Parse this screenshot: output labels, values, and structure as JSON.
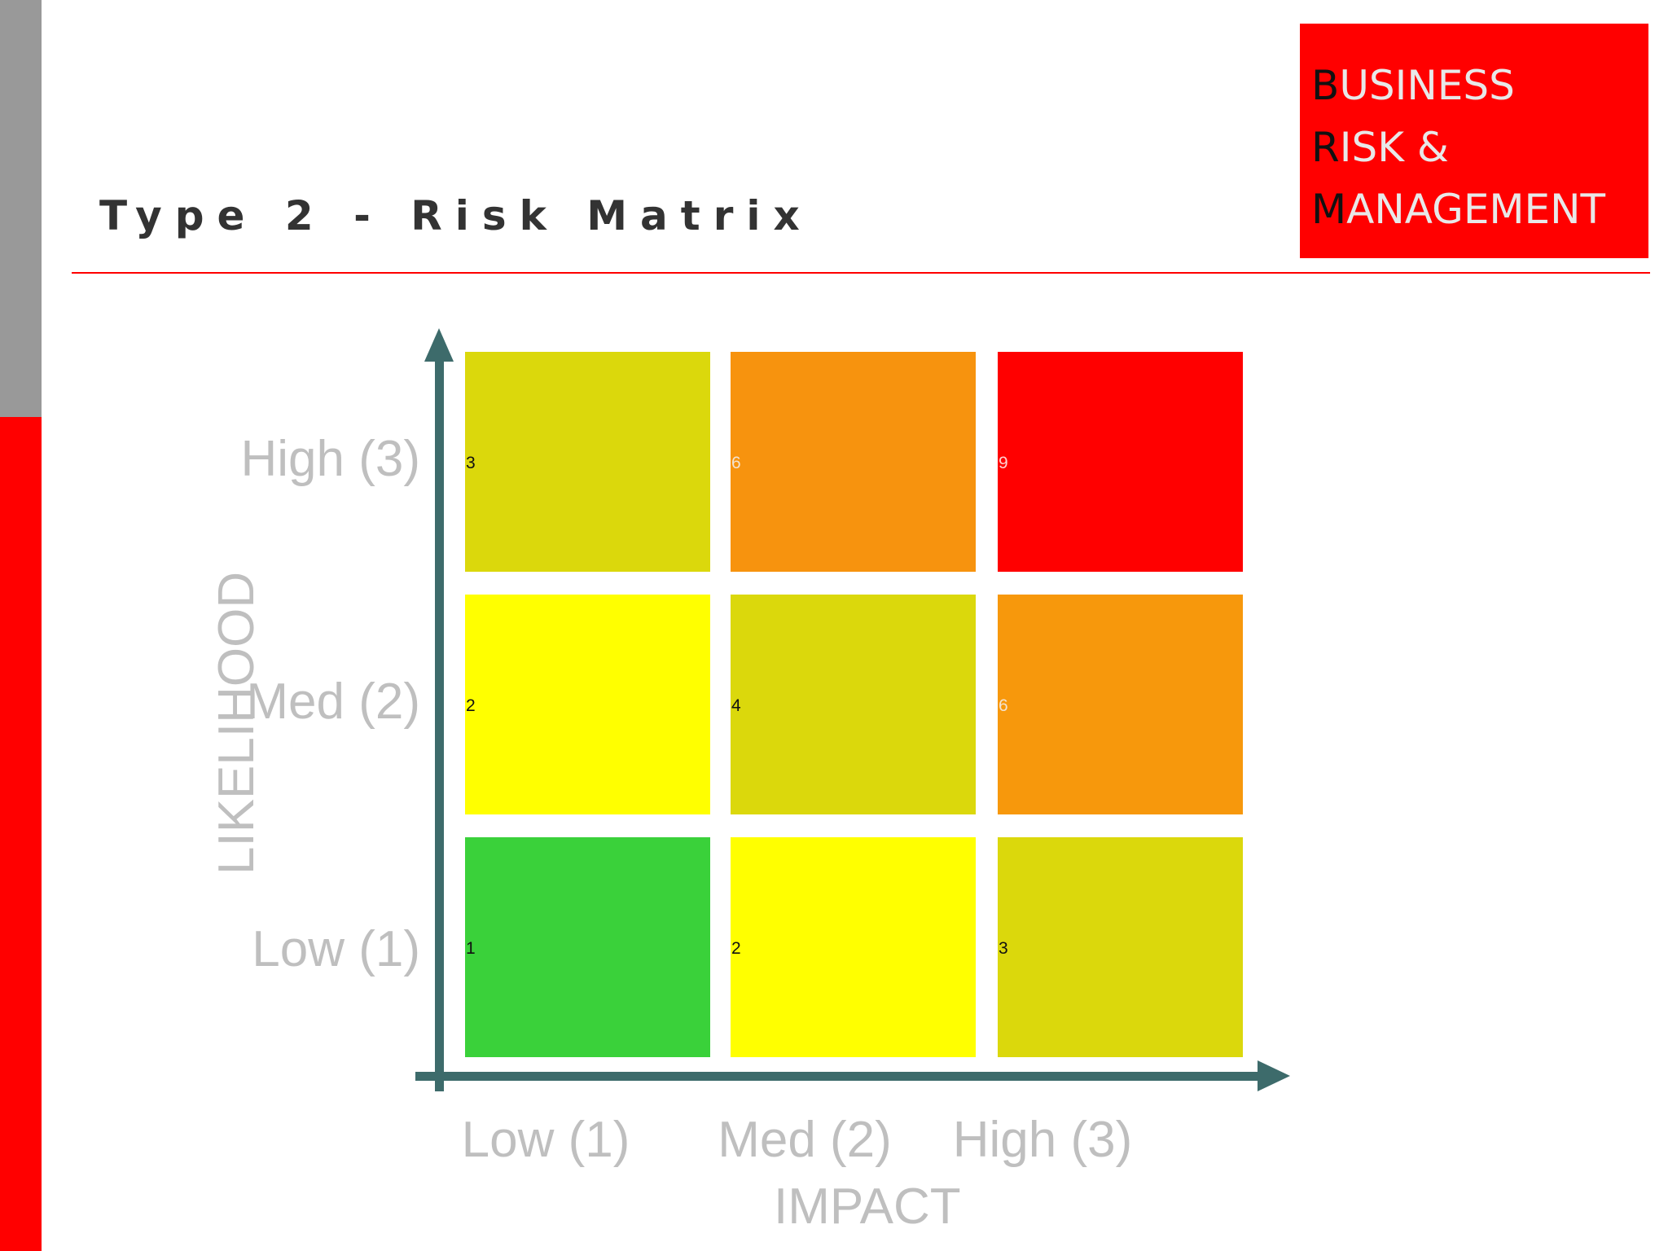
{
  "slide": {
    "title": "Type 2 - Risk Matrix"
  },
  "brand": {
    "lines": [
      {
        "first": "B",
        "rest": "USINESS"
      },
      {
        "first": "R",
        "rest": "ISK &"
      },
      {
        "first": "M",
        "rest": "ANAGEMENT"
      }
    ]
  },
  "matrix": {
    "y_axis_title": "LIKELIHOOD",
    "x_axis_title": "IMPACT",
    "rows": [
      "High (3)",
      "Med (2)",
      "Low (1)"
    ],
    "columns": [
      "Low (1)",
      "Med (2)",
      "High (3)"
    ],
    "cells": [
      [
        {
          "value": "3",
          "color": "#dbd80c",
          "text_color": "#111111"
        },
        {
          "value": "6",
          "color": "#f7930e",
          "text_color": "#f3e3d0"
        },
        {
          "value": "9",
          "color": "#ff0000",
          "text_color": "#ffd0d0"
        }
      ],
      [
        {
          "value": "2",
          "color": "#ffff00",
          "text_color": "#111111"
        },
        {
          "value": "4",
          "color": "#dbd80c",
          "text_color": "#111111"
        },
        {
          "value": "6",
          "color": "#f7980c",
          "text_color": "#f3e3d0"
        }
      ],
      [
        {
          "value": "1",
          "color": "#3ad13a",
          "text_color": "#111111"
        },
        {
          "value": "2",
          "color": "#ffff00",
          "text_color": "#111111"
        },
        {
          "value": "3",
          "color": "#dbd80c",
          "text_color": "#111111"
        }
      ]
    ],
    "axis_color": "#3d6b6b"
  }
}
